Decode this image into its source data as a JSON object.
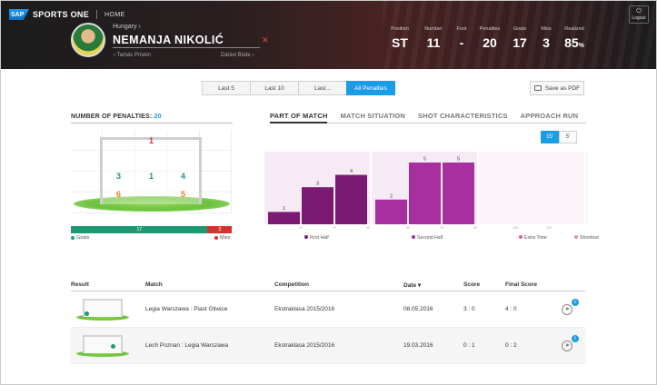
{
  "app": {
    "brand": "SPORTS ONE",
    "sap_logo": "SAP",
    "home": "HOME",
    "logout": "Logout",
    "logout_icon": "power-icon"
  },
  "player": {
    "country": "Hungary ›",
    "name": "NEMANJA NIKOLIĆ",
    "prev": "‹ Tamás Priskin",
    "next": "Dániel Böde ›",
    "stats": [
      {
        "label": "Position",
        "value": "ST"
      },
      {
        "label": "Number",
        "value": "11"
      },
      {
        "label": "Foot",
        "value": "-"
      },
      {
        "label": "Penalties",
        "value": "20"
      },
      {
        "label": "Goals",
        "value": "17"
      },
      {
        "label": "Miss",
        "value": "3"
      },
      {
        "label": "Realized",
        "value": "85",
        "unit": "%"
      }
    ]
  },
  "filters": [
    "Last 5",
    "Last 10",
    "Last...",
    "All Penalties"
  ],
  "active_filter": "All Penalties",
  "save_pdf": "Save as PDF",
  "penalties": {
    "title": "NUMBER OF PENALTIES:",
    "count": "20",
    "zones": {
      "top_center": "1",
      "mid_left": "3",
      "mid_center": "1",
      "mid_right": "4",
      "low_left": "6",
      "low_right": "5"
    },
    "goals_bar": {
      "goals": "17",
      "miss": "3"
    },
    "legend": {
      "goals": "Goals",
      "miss": "Miss"
    },
    "colors": {
      "goal": "#1a9a6e",
      "miss": "#d9322e",
      "accent": "#1b9ce7"
    }
  },
  "chart_tabs": [
    "PART OF MATCH",
    "MATCH SITUATION",
    "SHOT CHARACTERISTICS",
    "APPROACH RUN"
  ],
  "toggle": {
    "option_a": "15'",
    "option_b": "5'"
  },
  "chart_data": {
    "type": "bar",
    "groups": [
      {
        "name": "First Half",
        "color": "#7a1a72",
        "bg": "#f6eaf4",
        "ticks": [
          "15",
          "30",
          "45"
        ],
        "values": [
          1,
          3,
          4
        ]
      },
      {
        "name": "Second Half",
        "color": "#a72fa0",
        "bg": "#f6eaf4",
        "ticks": [
          "60",
          "75",
          "90"
        ],
        "values": [
          2,
          5,
          5
        ]
      },
      {
        "name": "Extra Time",
        "color": "#e05aa8",
        "bg": "#fbf3f7",
        "ticks": [
          "105",
          "120"
        ],
        "values": [
          0,
          0
        ]
      },
      {
        "name": "Shootout",
        "color": "#e98ac6",
        "bg": "#fbf5f8",
        "ticks": [],
        "values": []
      }
    ],
    "ylim": [
      0,
      5
    ]
  },
  "table": {
    "headers": {
      "result": "Result",
      "match": "Match",
      "competition": "Competition",
      "date": "Date ▾",
      "score": "Score",
      "final": "Final Score"
    },
    "rows": [
      {
        "match": "Legia Warszawa : Piast Gliwice",
        "competition": "Ekstraklasa 2015/2016",
        "date": "08.05.2016",
        "score": "3 : 0",
        "final": "4 : 0",
        "ball_x": 0.22,
        "ball_y": 0.8
      },
      {
        "match": "Lech Poznan : Legia Warszawa",
        "competition": "Ekstraklasa 2015/2016",
        "date": "19.03.2016",
        "score": "0 : 1",
        "final": "0 : 2",
        "ball_x": 0.72,
        "ball_y": 0.6
      }
    ]
  }
}
